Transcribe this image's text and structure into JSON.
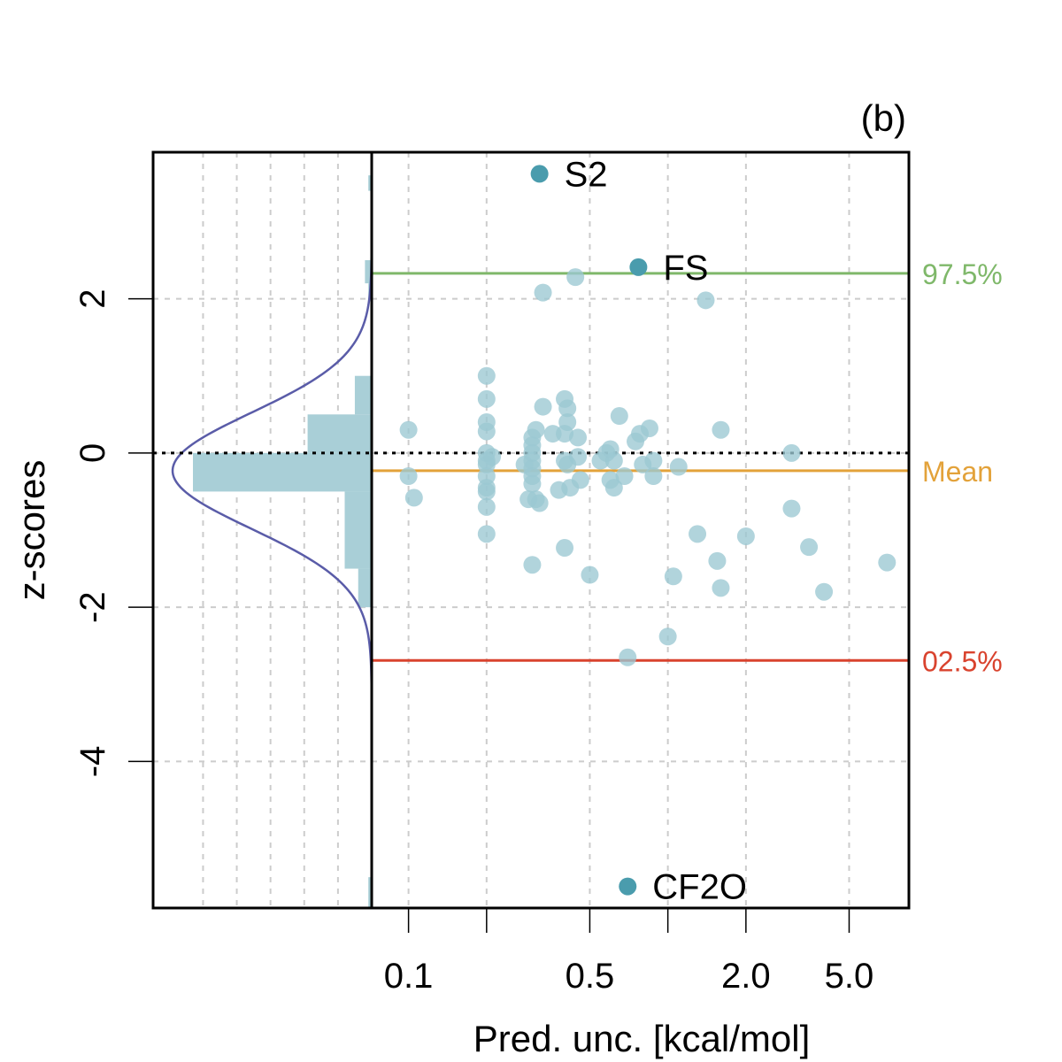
{
  "chart_data": {
    "type": "scatter",
    "panel_label": "(b)",
    "xlabel": "Pred. unc. [kcal/mol]",
    "ylabel": "z-scores",
    "x_scale": "log",
    "xlim": [
      0.075,
      8.5
    ],
    "ylim": [
      -5.9,
      3.9
    ],
    "x_ticks": [
      {
        "value": 0.1,
        "label": "0.1"
      },
      {
        "value": 0.2,
        "label": ""
      },
      {
        "value": 0.5,
        "label": "0.5"
      },
      {
        "value": 1.0,
        "label": ""
      },
      {
        "value": 2.0,
        "label": "2.0"
      },
      {
        "value": 5.0,
        "label": "5.0"
      }
    ],
    "y_ticks": [
      {
        "value": 2,
        "label": "2"
      },
      {
        "value": 0,
        "label": "0"
      },
      {
        "value": -2,
        "label": "-2"
      },
      {
        "value": -4,
        "label": "-4"
      }
    ],
    "grid": true,
    "reference_lines": [
      {
        "name": "97.5%",
        "value": 2.33,
        "color": "#7fb86a",
        "style": "solid"
      },
      {
        "name": "Mean",
        "value": -0.23,
        "color": "#e3a23a",
        "style": "solid"
      },
      {
        "name": "02.5%",
        "value": -2.69,
        "color": "#d9432e",
        "style": "solid"
      },
      {
        "name": "zero",
        "value": 0,
        "color": "#000000",
        "style": "dotted"
      }
    ],
    "highlighted_points": [
      {
        "label": "S2",
        "x": 0.32,
        "y": 3.62
      },
      {
        "label": "FS",
        "x": 0.77,
        "y": 2.41
      },
      {
        "label": "CF2O",
        "x": 0.7,
        "y": -5.62
      }
    ],
    "points": [
      {
        "x": 0.1,
        "y": 0.3
      },
      {
        "x": 0.1,
        "y": -0.3
      },
      {
        "x": 0.105,
        "y": -0.58
      },
      {
        "x": 0.2,
        "y": 1.0
      },
      {
        "x": 0.2,
        "y": 0.7
      },
      {
        "x": 0.2,
        "y": 0.4
      },
      {
        "x": 0.2,
        "y": 0.28
      },
      {
        "x": 0.2,
        "y": 0.0
      },
      {
        "x": 0.2,
        "y": -0.1
      },
      {
        "x": 0.2,
        "y": -0.15
      },
      {
        "x": 0.2,
        "y": -0.3
      },
      {
        "x": 0.2,
        "y": -0.45
      },
      {
        "x": 0.2,
        "y": -0.5
      },
      {
        "x": 0.2,
        "y": -0.7
      },
      {
        "x": 0.2,
        "y": -1.05
      },
      {
        "x": 0.21,
        "y": -0.05
      },
      {
        "x": 0.3,
        "y": 0.2
      },
      {
        "x": 0.3,
        "y": 0.1
      },
      {
        "x": 0.3,
        "y": 0.0
      },
      {
        "x": 0.3,
        "y": -0.1
      },
      {
        "x": 0.3,
        "y": -0.2
      },
      {
        "x": 0.3,
        "y": -0.3
      },
      {
        "x": 0.3,
        "y": -0.4
      },
      {
        "x": 0.29,
        "y": -0.6
      },
      {
        "x": 0.31,
        "y": 0.3
      },
      {
        "x": 0.31,
        "y": -0.6
      },
      {
        "x": 0.32,
        "y": -0.65
      },
      {
        "x": 0.3,
        "y": -1.45
      },
      {
        "x": 0.28,
        "y": -0.15
      },
      {
        "x": 0.33,
        "y": 0.6
      },
      {
        "x": 0.36,
        "y": 0.25
      },
      {
        "x": 0.38,
        "y": -0.48
      },
      {
        "x": 0.4,
        "y": 0.7
      },
      {
        "x": 0.41,
        "y": 0.58
      },
      {
        "x": 0.41,
        "y": 0.4
      },
      {
        "x": 0.4,
        "y": 0.25
      },
      {
        "x": 0.4,
        "y": -0.1
      },
      {
        "x": 0.41,
        "y": -0.15
      },
      {
        "x": 0.42,
        "y": -0.45
      },
      {
        "x": 0.4,
        "y": -1.23
      },
      {
        "x": 0.45,
        "y": 0.2
      },
      {
        "x": 0.45,
        "y": -0.05
      },
      {
        "x": 0.46,
        "y": -0.35
      },
      {
        "x": 0.33,
        "y": 2.08
      },
      {
        "x": 0.44,
        "y": 2.28
      },
      {
        "x": 0.5,
        "y": -1.58
      },
      {
        "x": 0.55,
        "y": -0.1
      },
      {
        "x": 0.58,
        "y": 0.0
      },
      {
        "x": 0.6,
        "y": 0.05
      },
      {
        "x": 0.62,
        "y": -0.1
      },
      {
        "x": 0.6,
        "y": -0.35
      },
      {
        "x": 0.62,
        "y": -0.45
      },
      {
        "x": 0.65,
        "y": 0.48
      },
      {
        "x": 0.68,
        "y": -0.3
      },
      {
        "x": 0.7,
        "y": -2.65
      },
      {
        "x": 0.75,
        "y": 0.15
      },
      {
        "x": 0.78,
        "y": 0.25
      },
      {
        "x": 0.8,
        "y": -0.15
      },
      {
        "x": 0.85,
        "y": 0.32
      },
      {
        "x": 0.88,
        "y": -0.1
      },
      {
        "x": 0.88,
        "y": -0.3
      },
      {
        "x": 1.0,
        "y": -2.38
      },
      {
        "x": 1.05,
        "y": -1.6
      },
      {
        "x": 1.1,
        "y": -0.18
      },
      {
        "x": 1.3,
        "y": -1.05
      },
      {
        "x": 1.4,
        "y": 1.98
      },
      {
        "x": 1.6,
        "y": 0.3
      },
      {
        "x": 1.55,
        "y": -1.4
      },
      {
        "x": 1.6,
        "y": -1.75
      },
      {
        "x": 2.0,
        "y": -1.08
      },
      {
        "x": 3.0,
        "y": 0.0
      },
      {
        "x": 3.0,
        "y": -0.72
      },
      {
        "x": 3.5,
        "y": -1.22
      },
      {
        "x": 4.0,
        "y": -1.8
      },
      {
        "x": 7.0,
        "y": -1.42
      }
    ],
    "marginal_histogram": {
      "bins": [
        {
          "from": 3.4,
          "to": 3.6,
          "count": 1
        },
        {
          "from": 2.2,
          "to": 2.5,
          "count": 2
        },
        {
          "from": 2.0,
          "to": 2.2,
          "count": 1
        },
        {
          "from": 0.5,
          "to": 1.0,
          "count": 5
        },
        {
          "from": 0.0,
          "to": 0.5,
          "count": 19
        },
        {
          "from": -0.5,
          "to": 0.0,
          "count": 53
        },
        {
          "from": -1.5,
          "to": -0.5,
          "count": 8
        },
        {
          "from": -2.0,
          "to": -1.5,
          "count": 4
        },
        {
          "from": -5.9,
          "to": -5.5,
          "count": 1
        }
      ],
      "density": "normal",
      "density_mean": -0.23,
      "density_sd": 0.75
    }
  },
  "colors": {
    "points": "#9bc8d2",
    "highlight": "#4a9cad",
    "histogram": "#a9cfd7",
    "density": "#5a5ca8",
    "grid": "#cccccc"
  }
}
